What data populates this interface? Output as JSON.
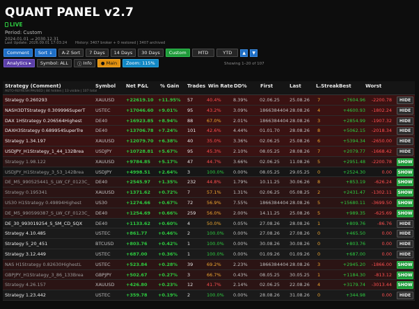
{
  "header": {
    "title": "QUANT PANEL  v2.7",
    "live": "LIVE",
    "period": "Period: Custom",
    "range": "2024.01.01  →  2030.12.31",
    "last_update": "Last Update: 2026.09.01 17:03:24",
    "history": "History: 3407 broker + 0 restored | 3407 archived"
  },
  "toolbar1": [
    "Comment",
    "Sort ↓",
    "A-Z Sort",
    "7 Days",
    "14 Days",
    "30 Days",
    "Custom",
    "MTD",
    "YTD"
  ],
  "toolbar2": {
    "analytics": "Analytics ▸",
    "symbol": "Symbol: ALL",
    "info": "Info",
    "main": "● Main",
    "zoom": "Zoom: 115%",
    "showing": "Showing 1–20 of 107"
  },
  "table": {
    "headers": {
      "strategy": "Strategy (Comment)",
      "symbol": "Symbol",
      "pnl": "Net P&L",
      "gain": "% Gain",
      "trades": "Trades",
      "winrate": "Win Rate",
      "dd": "DD%",
      "first": "First",
      "last": "Last",
      "lstreak": "L.Streak",
      "best": "Best",
      "worst": "Worst"
    },
    "subheader": "AUTO-REFRESH:PAUSED  |  84 hidden  |  13 visible  |  107 total",
    "rows": [
      {
        "name": "Strategy 0.260293",
        "symbol": "XAUUSD",
        "pnl": "+22619.10",
        "gain": "+11.95%",
        "trades": "57",
        "winrate": "40.4%",
        "wr": "red",
        "dd": "8.39%",
        "first": "02.06.25",
        "last": "25.08.26",
        "ls": "7",
        "best": "+7604.96",
        "worst": "-2200.78",
        "action": "HIDE",
        "style": "red"
      },
      {
        "name": "NASH3DTStrategy 0.309996SuperT",
        "symbol": "USTEC",
        "pnl": "+17046.60",
        "gain": "+9.01%",
        "trades": "95",
        "winrate": "43.2%",
        "wr": "red",
        "dd": "3.09%",
        "first": "18663844042",
        "last": "28.08.26",
        "ls": "4",
        "best": "+4600.93",
        "worst": "-1802.24",
        "action": "HIDE",
        "style": "red"
      },
      {
        "name": "DAX 1HStrategy 0.206564Highest",
        "symbol": "DE40",
        "pnl": "+16923.85",
        "gain": "+8.94%",
        "trades": "88",
        "winrate": "67.0%",
        "wr": "orange",
        "dd": "2.01%",
        "first": "18663844042",
        "last": "28.08.26",
        "ls": "3",
        "best": "+2854.99",
        "worst": "-1907.32",
        "action": "HIDE",
        "style": "red"
      },
      {
        "name": "DAXH3Strategy 0.689954SuperTre",
        "symbol": "DE40",
        "pnl": "+13706.78",
        "gain": "+7.24%",
        "trades": "101",
        "winrate": "42.6%",
        "wr": "red",
        "dd": "4.44%",
        "first": "01.01.70",
        "last": "28.08.26",
        "ls": "8",
        "best": "+5062.15",
        "worst": "-2018.34",
        "action": "HIDE",
        "style": "red"
      },
      {
        "name": "Strategy 1.34.197",
        "symbol": "XAUUSD",
        "pnl": "+12079.70",
        "gain": "+6.38%",
        "trades": "40",
        "winrate": "35.0%",
        "wr": "red",
        "dd": "3.36%",
        "first": "02.06.25",
        "last": "25.08.26",
        "ls": "6",
        "best": "+5394.34",
        "worst": "-2650.00",
        "action": "HIDE",
        "style": "red"
      },
      {
        "name": "USDJPY_H1Strategy_1_44_132Brea",
        "symbol": "USDJPY",
        "pnl": "+10728.81",
        "gain": "+5.67%",
        "trades": "95",
        "winrate": "45.3%",
        "wr": "red",
        "dd": "2.10%",
        "first": "08.05.25",
        "last": "28.08.26",
        "ls": "7",
        "best": "+2079.77",
        "worst": "-1668.42",
        "action": "HIDE",
        "style": "red"
      },
      {
        "name": "Strategy 1.98.122",
        "symbol": "XAUUSD",
        "pnl": "+9784.85",
        "gain": "+5.17%",
        "trades": "47",
        "winrate": "44.7%",
        "wr": "red",
        "dd": "3.66%",
        "first": "02.06.25",
        "last": "11.08.26",
        "ls": "5",
        "best": "+2951.48",
        "worst": "-2200.78",
        "action": "SHOW",
        "style": "dimred"
      },
      {
        "name": "USDJPY_H1Strategy_3_53_142Brea",
        "symbol": "USDJPY",
        "pnl": "+4998.51",
        "gain": "+2.64%",
        "trades": "3",
        "winrate": "100.0%",
        "wr": "green",
        "dd": "0.00%",
        "first": "08.05.25",
        "last": "29.05.25",
        "ls": "0",
        "best": "+2524.30",
        "worst": "0.00",
        "action": "SHOW",
        "style": "dim"
      },
      {
        "name": "DE_M5_990525441_S_LW_CF_0123C_",
        "symbol": "DE40",
        "pnl": "+2545.97",
        "gain": "+1.35%",
        "trades": "232",
        "winrate": "44.8%",
        "wr": "red",
        "dd": "1.79%",
        "first": "10.11.25",
        "last": "30.06.26",
        "ls": "8",
        "best": "+853.19",
        "worst": "-626.24",
        "action": "SHOW",
        "style": "dimred"
      },
      {
        "name": "Strategy 0.195341",
        "symbol": "XAUUSD",
        "pnl": "+1371.62",
        "gain": "+0.72%",
        "trades": "7",
        "winrate": "57.1%",
        "wr": "orange",
        "dd": "1.31%",
        "first": "02.06.25",
        "last": "05.08.25",
        "ls": "2",
        "best": "+2431.47",
        "worst": "-1302.11",
        "action": "SHOW",
        "style": "dimred"
      },
      {
        "name": "US30 H1Strategy 0.49894Highest",
        "symbol": "US30",
        "pnl": "+1274.66",
        "gain": "+0.67%",
        "trades": "72",
        "winrate": "56.9%",
        "wr": "orange",
        "dd": "7.55%",
        "first": "18663844042",
        "last": "28.08.26",
        "ls": "5",
        "best": "+15680.11",
        "worst": "-3699.50",
        "action": "SHOW",
        "style": "dimred"
      },
      {
        "name": "DE_M5_990599387_S_LW_CF_0123C_",
        "symbol": "DE40",
        "pnl": "+1254.69",
        "gain": "+0.66%",
        "trades": "259",
        "winrate": "56.0%",
        "wr": "orange",
        "dd": "2.00%",
        "first": "14.11.25",
        "last": "25.08.26",
        "ls": "5",
        "best": "+989.35",
        "worst": "-625.69",
        "action": "SHOW",
        "style": "dimred"
      },
      {
        "name": "DE_30_993019254_S_SM_CD_SQX",
        "symbol": "DE40",
        "pnl": "+1133.62",
        "gain": "+0.60%",
        "trades": "4",
        "winrate": "50.0%",
        "wr": "orange",
        "dd": "0.05%",
        "first": "27.08.26",
        "last": "28.08.26",
        "ls": "1",
        "best": "+809.76",
        "worst": "-86.76",
        "action": "HIDE",
        "style": "dark"
      },
      {
        "name": "Strategy 4.10.485",
        "symbol": "USTEC",
        "pnl": "+861.77",
        "gain": "+0.46%",
        "trades": "2",
        "winrate": "100.0%",
        "wr": "green",
        "dd": "0.00%",
        "first": "27.08.26",
        "last": "27.08.26",
        "ls": "0",
        "best": "+465.50",
        "worst": "0.00",
        "action": "HIDE",
        "style": "dark"
      },
      {
        "name": "Strategy 5_20_451",
        "symbol": "BTCUSD",
        "pnl": "+803.76",
        "gain": "+0.42%",
        "trades": "1",
        "winrate": "100.0%",
        "wr": "green",
        "dd": "0.00%",
        "first": "30.08.26",
        "last": "30.08.26",
        "ls": "0",
        "best": "+803.76",
        "worst": "0.00",
        "action": "HIDE",
        "style": "dark"
      },
      {
        "name": "Strategy 3.12.449",
        "symbol": "USTEC",
        "pnl": "+687.00",
        "gain": "+0.36%",
        "trades": "1",
        "winrate": "100.0%",
        "wr": "green",
        "dd": "0.00%",
        "first": "01.09.26",
        "last": "01.09.26",
        "ls": "0",
        "best": "+687.00",
        "worst": "0.00",
        "action": "HIDE",
        "style": "dark"
      },
      {
        "name": "NAS H1Strategy 0.82630HighestL",
        "symbol": "USTEC",
        "pnl": "+523.84",
        "gain": "+0.28%",
        "trades": "39",
        "winrate": "69.2%",
        "wr": "orange",
        "dd": "2.23%",
        "first": "18663844042",
        "last": "28.08.26",
        "ls": "3",
        "best": "+2945.20",
        "worst": "-1866.00",
        "action": "SHOW",
        "style": "dimred"
      },
      {
        "name": "GBPJPY_H1Strategy_3_86_133Brea",
        "symbol": "GBPJPY",
        "pnl": "+502.67",
        "gain": "+0.27%",
        "trades": "3",
        "winrate": "66.7%",
        "wr": "orange",
        "dd": "0.43%",
        "first": "08.05.25",
        "last": "30.05.25",
        "ls": "1",
        "best": "+1184.30",
        "worst": "-813.12",
        "action": "SHOW",
        "style": "dimred"
      },
      {
        "name": "Strategy 4.26.157",
        "symbol": "XAUUSD",
        "pnl": "+426.80",
        "gain": "+0.23%",
        "trades": "12",
        "winrate": "41.7%",
        "wr": "red",
        "dd": "2.14%",
        "first": "02.06.25",
        "last": "22.08.26",
        "ls": "4",
        "best": "+3179.74",
        "worst": "-3013.44",
        "action": "SHOW",
        "style": "dimred"
      },
      {
        "name": "Strategy 1.23.442",
        "symbol": "USTEC",
        "pnl": "+359.78",
        "gain": "+0.19%",
        "trades": "2",
        "winrate": "100.0%",
        "wr": "green",
        "dd": "0.00%",
        "first": "28.08.26",
        "last": "31.08.26",
        "ls": "0",
        "best": "+344.98",
        "worst": "0.00",
        "action": "HIDE",
        "style": "dark"
      }
    ]
  },
  "colors": {
    "positive": "#2ecc40",
    "negative": "#ff5050",
    "warning": "#f0a830",
    "accent": "#1f6fc5"
  }
}
